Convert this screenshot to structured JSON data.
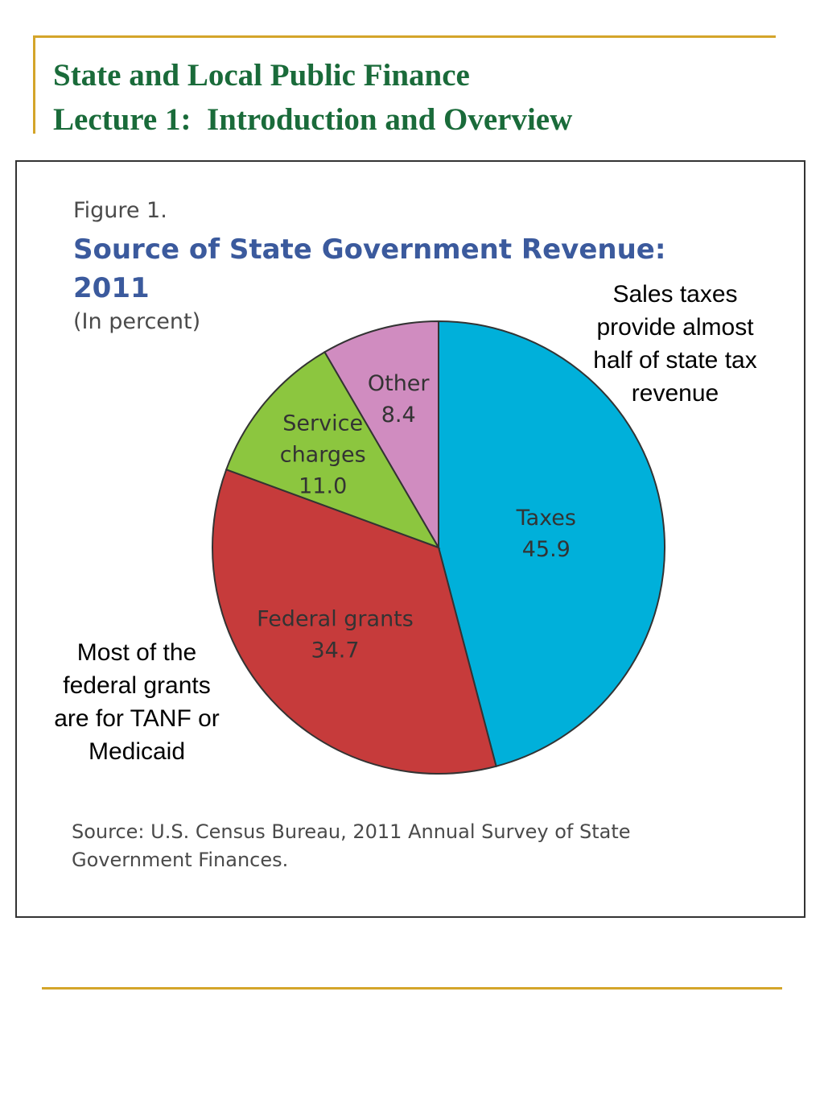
{
  "slide": {
    "title_line1": "State and Local Public Finance",
    "title_line2": "Lecture 1:  Introduction and Overview",
    "accent_color": "#d4a52a",
    "title_color": "#1a6b3a"
  },
  "figure": {
    "label": "Figure 1.",
    "title_line1": "Source of State Government Revenue:",
    "title_line2": "2011",
    "unit": "(In percent)",
    "source_line1": "Source: U.S. Census Bureau, 2011 Annual Survey of State",
    "source_line2": "Government Finances."
  },
  "callouts": {
    "sales_taxes": [
      "Sales taxes",
      "provide almost",
      "half of state tax",
      "revenue"
    ],
    "federal_grants": [
      "Most of the",
      "federal grants",
      "are for TANF or",
      "Medicaid"
    ]
  },
  "chart_data": {
    "type": "pie",
    "title": "Source of State Government Revenue: 2011",
    "unit": "(In percent)",
    "start": "12 o'clock, clockwise",
    "slices": [
      {
        "lines": [
          "Taxes"
        ],
        "value": 45.9,
        "color": "#00b0da"
      },
      {
        "lines": [
          "Federal grants"
        ],
        "value": 34.7,
        "color": "#c63b3b"
      },
      {
        "lines": [
          "Service",
          "charges"
        ],
        "value": 11.0,
        "color": "#8cc63f"
      },
      {
        "lines": [
          "Other"
        ],
        "value": 8.4,
        "color": "#d08cc0"
      }
    ]
  }
}
